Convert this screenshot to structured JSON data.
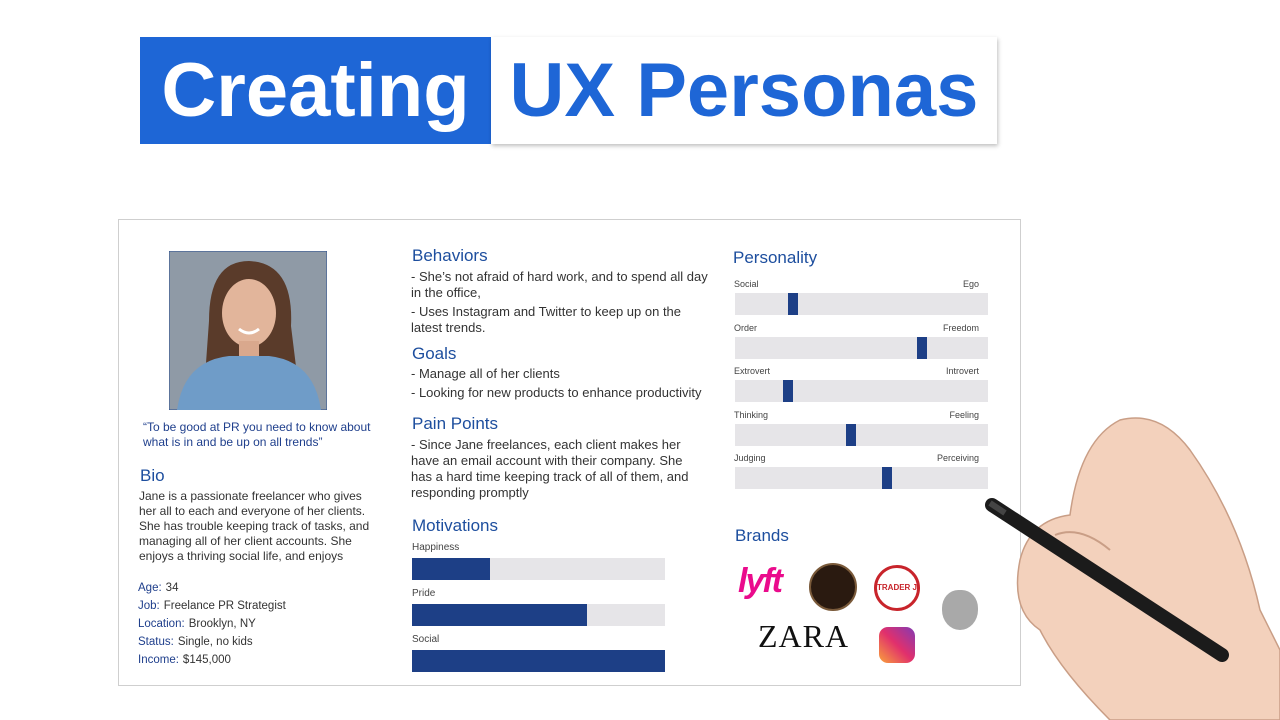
{
  "header": {
    "title_part1": "Creating",
    "title_part2": "UX Personas"
  },
  "persona": {
    "quote": "“To be good at PR you need to know about what is in and be up on all trends”",
    "bio_heading": "Bio",
    "bio": "Jane is a passionate freelancer who gives her all to each and everyone of her clients. She has trouble keeping track of tasks, and managing all of her client accounts. She enjoys a thriving social life, and enjoys",
    "details": [
      {
        "label": "Age:",
        "value": "34"
      },
      {
        "label": "Job:",
        "value": "Freelance PR Strategist"
      },
      {
        "label": "Location:",
        "value": "Brooklyn, NY"
      },
      {
        "label": "Status:",
        "value": "Single, no kids"
      },
      {
        "label": "Income:",
        "value": "$145,000"
      }
    ]
  },
  "behaviors": {
    "heading": "Behaviors",
    "items": [
      "- She’s not afraid of hard work, and to spend all day in the office,",
      "- Uses Instagram and Twitter to keep up on the latest trends."
    ]
  },
  "goals": {
    "heading": "Goals",
    "items": [
      "- Manage all of her clients",
      "- Looking for new products to enhance productivity"
    ]
  },
  "pain_points": {
    "heading": "Pain Points",
    "items": [
      "- Since Jane freelances, each client makes her have an email account with their company. She has a hard time keeping track of all of them, and responding promptly"
    ]
  },
  "motivations": {
    "heading": "Motivations",
    "xlim": [
      0,
      100
    ],
    "bars": [
      {
        "name": "Happiness",
        "value": 31
      },
      {
        "name": "Pride",
        "value": 69
      },
      {
        "name": "Social",
        "value": 100
      }
    ]
  },
  "personality": {
    "heading": "Personality",
    "xlim": [
      0,
      100
    ],
    "scales": [
      {
        "left": "Social",
        "right": "Ego",
        "value": 23
      },
      {
        "left": "Order",
        "right": "Freedom",
        "value": 74
      },
      {
        "left": "Extrovert",
        "right": "Introvert",
        "value": 21
      },
      {
        "left": "Thinking",
        "right": "Feeling",
        "value": 46
      },
      {
        "left": "Judging",
        "right": "Perceiving",
        "value": 60
      }
    ]
  },
  "brands": {
    "heading": "Brands",
    "logos": [
      "lyft",
      "TRADER JOE'S",
      "ZARA"
    ]
  }
}
